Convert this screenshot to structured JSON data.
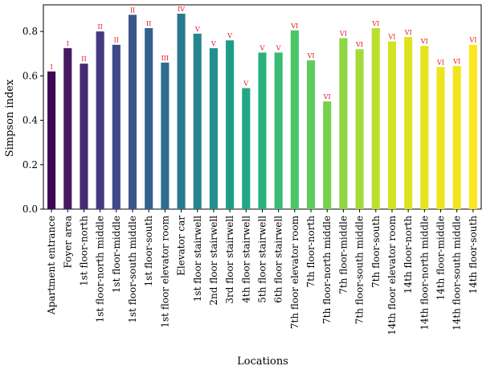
{
  "chart_data": {
    "type": "bar",
    "xlabel": "Locations",
    "ylabel": "Simpson index",
    "ylim": [
      0,
      0.92
    ],
    "yticks": [
      "0.0",
      "0.2",
      "0.4",
      "0.6",
      "0.8"
    ],
    "grid": false,
    "categories": [
      "Apartment entrance",
      "Foyer area",
      "1st floor-north",
      "1st floor-north middle",
      "1st floor-middle",
      "1st floor-south middle",
      "1st floor-south",
      "1st floor elevator room",
      "Elevator car",
      "1st floor stairwell",
      "2nd floor stairwell",
      "3rd floor stairwell",
      "4th floor stairwell",
      "5th floor stairwell",
      "6th floor stairwell",
      "7th floor elevator room",
      "7th floor-north",
      "7th floor-north middle",
      "7th floor-middle",
      "7th floor-south middle",
      "7th floor-south",
      "14th floor elevator room",
      "14th floor-north",
      "14th floor-north middle",
      "14th floor-middle",
      "14th floor-south middle",
      "14th floor-south"
    ],
    "values": [
      0.62,
      0.725,
      0.655,
      0.8,
      0.74,
      0.875,
      0.815,
      0.66,
      0.88,
      0.79,
      0.725,
      0.76,
      0.545,
      0.705,
      0.705,
      0.805,
      0.67,
      0.485,
      0.77,
      0.72,
      0.815,
      0.755,
      0.775,
      0.735,
      0.64,
      0.645,
      0.74
    ],
    "bar_labels": [
      "I",
      "I",
      "II",
      "II",
      "II",
      "II",
      "II",
      "III",
      "IV",
      "V",
      "V",
      "V",
      "V",
      "V",
      "V",
      "VI",
      "VI",
      "VI",
      "VI",
      "VI",
      "VI",
      "VI",
      "VI",
      "VI",
      "VI",
      "VI",
      "VI"
    ],
    "colors": [
      "#3e0752",
      "#461a63",
      "#472a72",
      "#443a80",
      "#3e4a89",
      "#39558c",
      "#34628d",
      "#2f6d8e",
      "#2a798e",
      "#26848e",
      "#22908c",
      "#1f9c88",
      "#21a784",
      "#29b27b",
      "#38bd72",
      "#4bc665",
      "#5fcd59",
      "#76d24c",
      "#8dd644",
      "#a4db3a",
      "#bcdf2e",
      "#cfe223",
      "#dce31d",
      "#e6e41a",
      "#ede51b",
      "#f2e51d",
      "#fbe722"
    ]
  }
}
